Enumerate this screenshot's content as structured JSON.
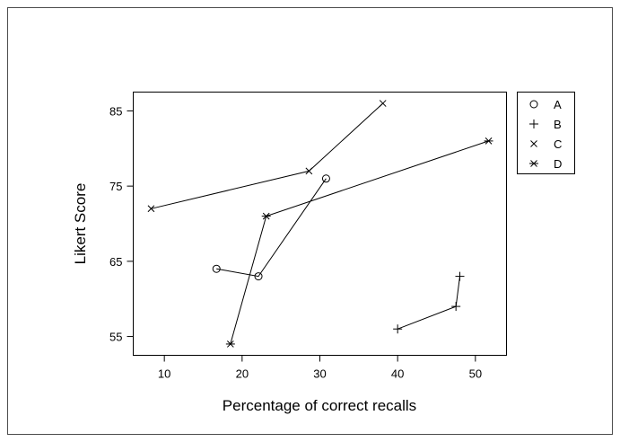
{
  "chart_data": {
    "type": "line",
    "title": "",
    "xlabel": "Percentage of correct recalls",
    "ylabel": "Likert Score",
    "xlim": [
      6,
      54
    ],
    "ylim": [
      52.5,
      87.5
    ],
    "xticks": [
      10,
      20,
      30,
      40,
      50
    ],
    "yticks": [
      55,
      65,
      75,
      85
    ],
    "grid": false,
    "legend_position": "right",
    "series": [
      {
        "name": "A",
        "marker": "circle",
        "points": [
          [
            16.7,
            64
          ],
          [
            22.1,
            63
          ],
          [
            30.8,
            76
          ]
        ]
      },
      {
        "name": "B",
        "marker": "plus",
        "points": [
          [
            40.0,
            56
          ],
          [
            47.5,
            59
          ],
          [
            48.0,
            63
          ]
        ]
      },
      {
        "name": "C",
        "marker": "cross",
        "points": [
          [
            8.3,
            72
          ],
          [
            28.6,
            77
          ],
          [
            38.1,
            86
          ]
        ]
      },
      {
        "name": "D",
        "marker": "asterisk",
        "points": [
          [
            18.5,
            54
          ],
          [
            23.1,
            71
          ],
          [
            51.7,
            81
          ]
        ]
      }
    ]
  }
}
